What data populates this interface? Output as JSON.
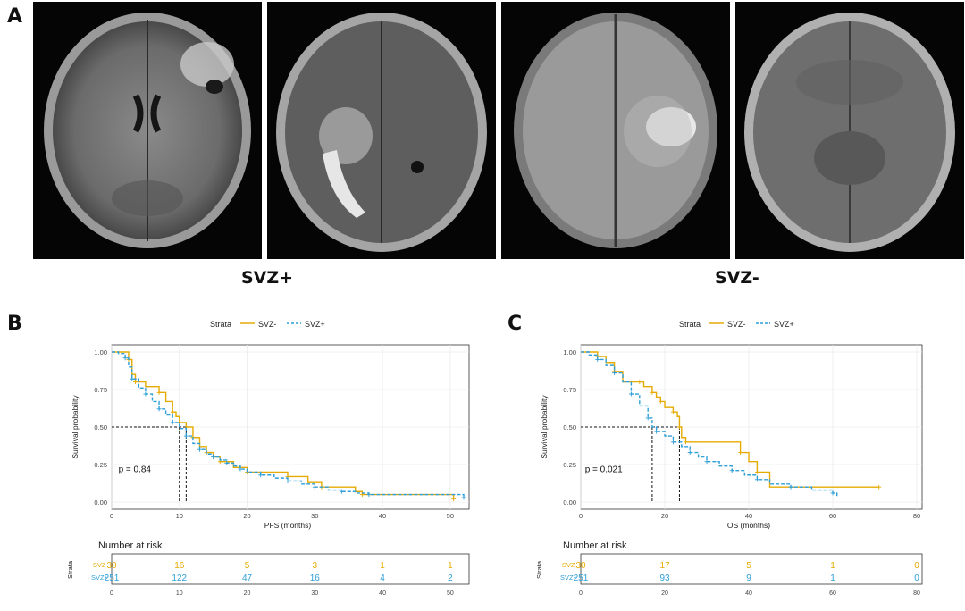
{
  "panels": {
    "a": "A",
    "b": "B",
    "c": "C"
  },
  "groups": {
    "plus": "SVZ+",
    "minus": "SVZ-"
  },
  "colors": {
    "svz_minus": "#e6ab02",
    "svz_plus": "#2e9fd8",
    "background": "#ffffff",
    "grid": "#ebebeb"
  },
  "chart_data": [
    {
      "type": "line",
      "panel": "B",
      "legend_title": "Strata",
      "xlabel": "PFS (months)",
      "ylabel": "Survival probability",
      "xlim": [
        0,
        52
      ],
      "ylim": [
        0,
        1
      ],
      "xticks": [
        0,
        10,
        20,
        30,
        40,
        50
      ],
      "yticks": [
        "0.00",
        "0.25",
        "0.50",
        "0.75",
        "1.00"
      ],
      "pvalue": "p = 0.84",
      "medians": [
        10,
        11
      ],
      "series": [
        {
          "name": "SVZ-",
          "color": "#e6ab02",
          "points": [
            [
              0,
              1
            ],
            [
              2,
              1
            ],
            [
              2.5,
              0.95
            ],
            [
              3,
              0.85
            ],
            [
              3.5,
              0.8
            ],
            [
              5,
              0.77
            ],
            [
              7,
              0.73
            ],
            [
              8,
              0.67
            ],
            [
              9,
              0.6
            ],
            [
              9.5,
              0.57
            ],
            [
              10,
              0.53
            ],
            [
              11,
              0.5
            ],
            [
              12,
              0.43
            ],
            [
              13,
              0.37
            ],
            [
              14,
              0.33
            ],
            [
              15,
              0.3
            ],
            [
              16,
              0.27
            ],
            [
              18,
              0.23
            ],
            [
              20,
              0.2
            ],
            [
              25,
              0.2
            ],
            [
              26,
              0.17
            ],
            [
              29,
              0.13
            ],
            [
              31,
              0.1
            ],
            [
              36,
              0.07
            ],
            [
              37,
              0.05
            ],
            [
              50,
              0.05
            ],
            [
              50.5,
              0.02
            ]
          ]
        },
        {
          "name": "SVZ+",
          "color": "#2e9fd8",
          "points": [
            [
              0,
              1
            ],
            [
              1,
              0.99
            ],
            [
              2,
              0.96
            ],
            [
              2.5,
              0.9
            ],
            [
              3,
              0.82
            ],
            [
              4,
              0.76
            ],
            [
              5,
              0.72
            ],
            [
              6,
              0.67
            ],
            [
              7,
              0.62
            ],
            [
              8,
              0.58
            ],
            [
              9,
              0.53
            ],
            [
              10,
              0.49
            ],
            [
              11,
              0.44
            ],
            [
              12,
              0.39
            ],
            [
              13,
              0.35
            ],
            [
              14,
              0.32
            ],
            [
              15,
              0.3
            ],
            [
              16,
              0.28
            ],
            [
              17,
              0.26
            ],
            [
              18,
              0.24
            ],
            [
              19,
              0.22
            ],
            [
              20,
              0.2
            ],
            [
              22,
              0.18
            ],
            [
              24,
              0.16
            ],
            [
              26,
              0.14
            ],
            [
              28,
              0.12
            ],
            [
              30,
              0.1
            ],
            [
              32,
              0.08
            ],
            [
              34,
              0.07
            ],
            [
              36,
              0.06
            ],
            [
              38,
              0.05
            ],
            [
              45,
              0.05
            ],
            [
              52,
              0.03
            ]
          ]
        }
      ],
      "risk_table": {
        "title": "Number at risk",
        "strata_label": "Strata",
        "x": [
          0,
          10,
          20,
          30,
          40,
          50
        ],
        "rows": [
          {
            "name": "SVZ-",
            "values": [
              "30",
              "16",
              "5",
              "3",
              "1",
              "1"
            ]
          },
          {
            "name": "SVZ+",
            "values": [
              "251",
              "122",
              "47",
              "16",
              "4",
              "2"
            ]
          }
        ]
      }
    },
    {
      "type": "line",
      "panel": "C",
      "legend_title": "Strata",
      "xlabel": "OS (months)",
      "ylabel": "Survival probability",
      "xlim": [
        0,
        80
      ],
      "ylim": [
        0,
        1
      ],
      "xticks": [
        0,
        20,
        40,
        60,
        80
      ],
      "yticks": [
        "0.00",
        "0.25",
        "0.50",
        "0.75",
        "1.00"
      ],
      "pvalue": "p = 0.021",
      "medians": [
        17,
        23.5
      ],
      "series": [
        {
          "name": "SVZ-",
          "color": "#e6ab02",
          "points": [
            [
              0,
              1
            ],
            [
              2,
              1
            ],
            [
              4,
              0.97
            ],
            [
              6,
              0.93
            ],
            [
              8,
              0.87
            ],
            [
              10,
              0.8
            ],
            [
              14,
              0.8
            ],
            [
              15,
              0.77
            ],
            [
              17,
              0.73
            ],
            [
              18,
              0.7
            ],
            [
              19,
              0.67
            ],
            [
              20,
              0.63
            ],
            [
              22,
              0.6
            ],
            [
              23,
              0.57
            ],
            [
              23.5,
              0.5
            ],
            [
              24,
              0.43
            ],
            [
              25,
              0.4
            ],
            [
              37,
              0.4
            ],
            [
              38,
              0.33
            ],
            [
              40,
              0.27
            ],
            [
              42,
              0.2
            ],
            [
              45,
              0.1
            ],
            [
              71,
              0.1
            ]
          ]
        },
        {
          "name": "SVZ+",
          "color": "#2e9fd8",
          "points": [
            [
              0,
              1
            ],
            [
              2,
              0.98
            ],
            [
              4,
              0.95
            ],
            [
              6,
              0.91
            ],
            [
              8,
              0.86
            ],
            [
              10,
              0.8
            ],
            [
              12,
              0.72
            ],
            [
              14,
              0.64
            ],
            [
              16,
              0.56
            ],
            [
              17,
              0.5
            ],
            [
              18,
              0.47
            ],
            [
              20,
              0.44
            ],
            [
              22,
              0.4
            ],
            [
              24,
              0.37
            ],
            [
              26,
              0.33
            ],
            [
              28,
              0.3
            ],
            [
              30,
              0.27
            ],
            [
              33,
              0.24
            ],
            [
              36,
              0.21
            ],
            [
              39,
              0.18
            ],
            [
              42,
              0.15
            ],
            [
              45,
              0.12
            ],
            [
              50,
              0.1
            ],
            [
              55,
              0.08
            ],
            [
              60,
              0.06
            ],
            [
              61,
              0.03
            ]
          ]
        }
      ],
      "risk_table": {
        "title": "Number at risk",
        "strata_label": "Strata",
        "x": [
          0,
          20,
          40,
          60,
          80
        ],
        "rows": [
          {
            "name": "SVZ-",
            "values": [
              "30",
              "17",
              "5",
              "1",
              "0"
            ]
          },
          {
            "name": "SVZ+",
            "values": [
              "251",
              "93",
              "9",
              "1",
              "0"
            ]
          }
        ]
      }
    }
  ]
}
